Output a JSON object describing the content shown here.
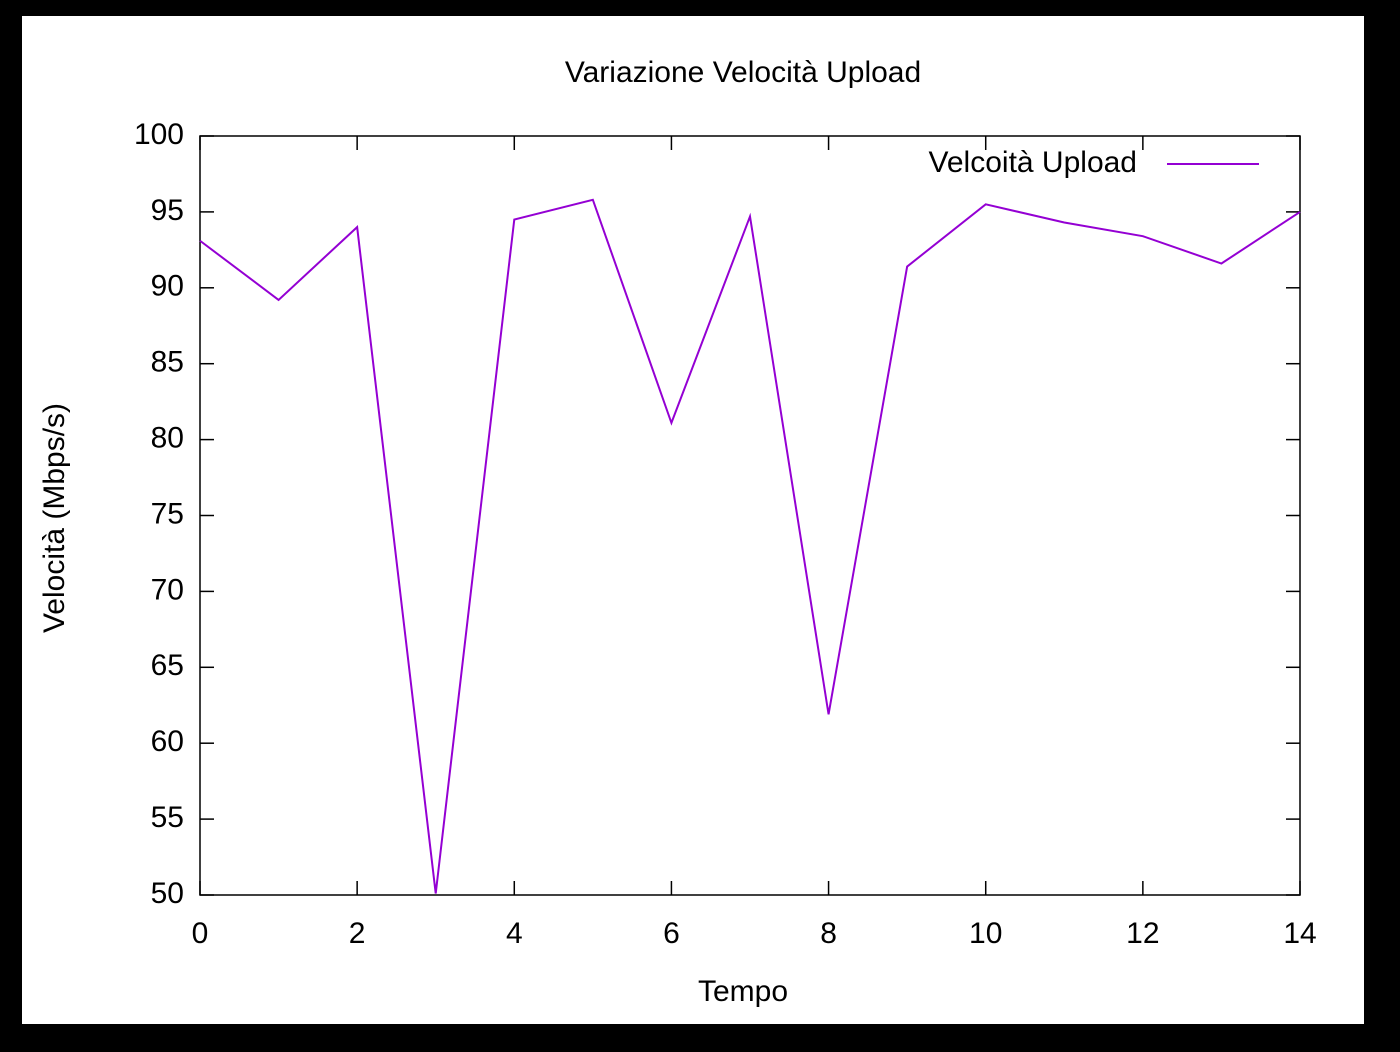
{
  "chart_data": {
    "type": "line",
    "title": "Variazione Velocità Upload",
    "x_label": "Tempo",
    "y_label": "Velocità (Mbps/s)",
    "x": [
      0,
      1,
      2,
      3,
      4,
      5,
      6,
      7,
      8,
      9,
      10,
      11,
      12,
      13,
      14
    ],
    "series": [
      {
        "name": "Velcoità Upload",
        "color": "#9400d3",
        "values": [
          93.1,
          89.2,
          94.0,
          50.1,
          94.5,
          95.8,
          81.1,
          94.7,
          61.9,
          91.4,
          95.5,
          94.3,
          93.4,
          91.6,
          95.0
        ]
      }
    ],
    "xlim": [
      0,
      14
    ],
    "xticks": [
      0,
      2,
      4,
      6,
      8,
      10,
      12,
      14
    ],
    "ylim": [
      50,
      100
    ],
    "yticks": [
      50,
      55,
      60,
      65,
      70,
      75,
      80,
      85,
      90,
      95,
      100
    ],
    "legend": "top-right",
    "grid": false
  }
}
